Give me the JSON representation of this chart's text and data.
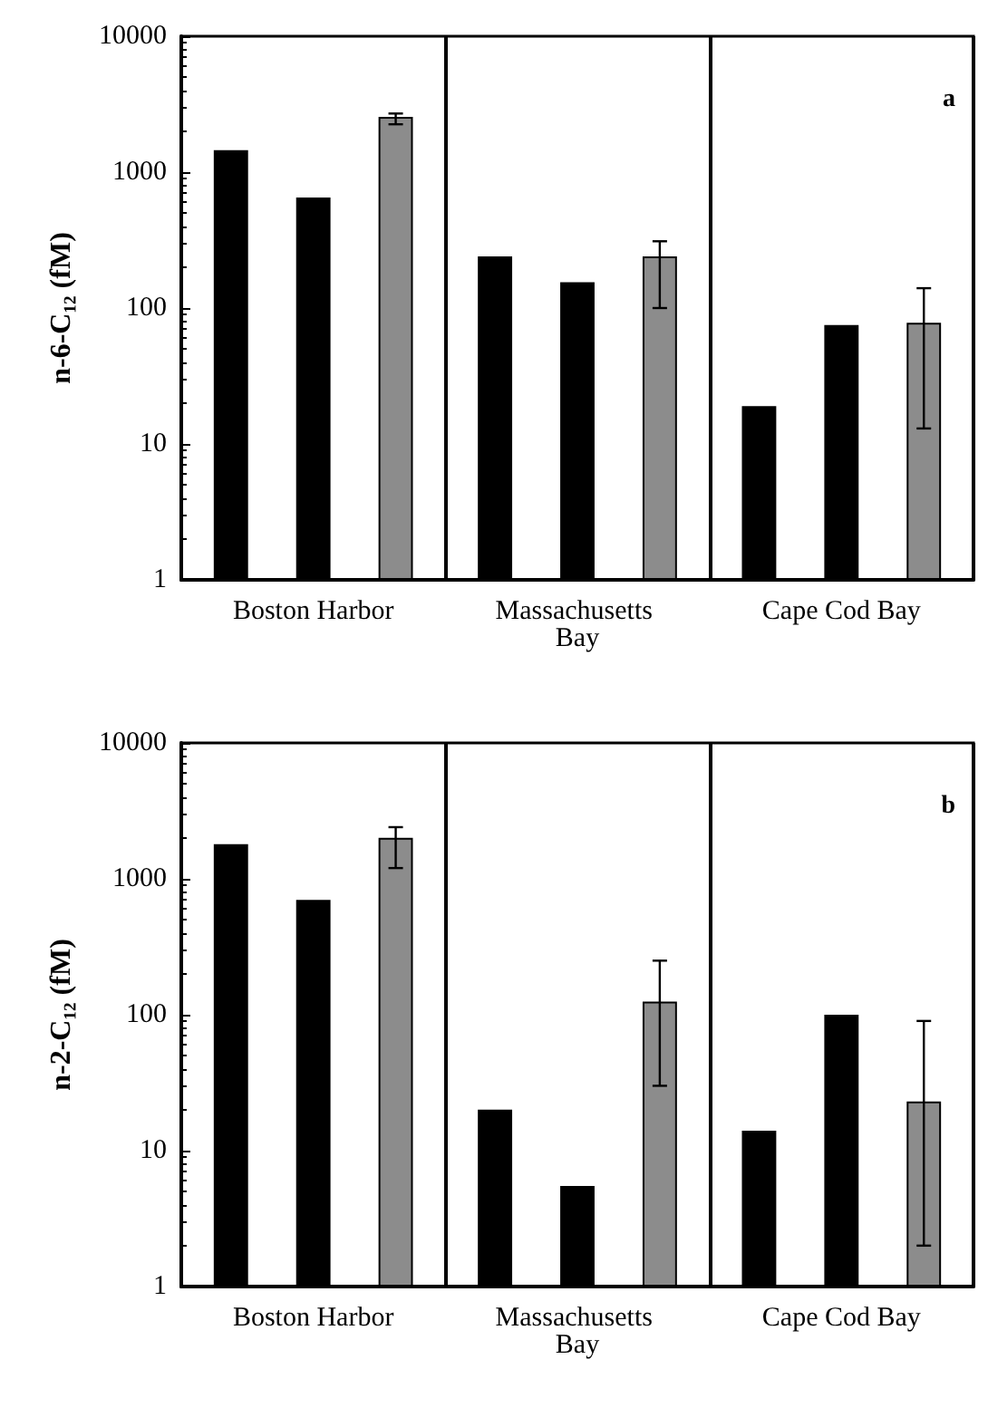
{
  "chart_data": [
    {
      "type": "bar",
      "ylabel": "n-6-C₁₂ (fM)",
      "annotations": [
        "a"
      ],
      "categories": [
        "Boston Harbor",
        "Massachusetts Bay",
        "Cape Cod Bay"
      ],
      "series": [
        {
          "color": "#000000",
          "values": [
            1450,
            240,
            19
          ]
        },
        {
          "color": "#000000",
          "values": [
            650,
            155,
            75
          ]
        },
        {
          "color": "#8c8c8c",
          "values": [
            2550,
            240,
            78
          ],
          "errors": [
            [
              2250,
              2700
            ],
            [
              100,
              310
            ],
            [
              13,
              140
            ]
          ]
        }
      ],
      "ylim": [
        1,
        10000
      ],
      "yticks": [
        1,
        10,
        100,
        1000,
        10000
      ],
      "log": "y",
      "grid": "x"
    },
    {
      "type": "bar",
      "ylabel": "n-2-C₁₂ (fM)",
      "annotations": [
        "b"
      ],
      "categories": [
        "Boston Harbor",
        "Massachusetts Bay",
        "Cape Cod Bay"
      ],
      "series": [
        {
          "color": "#000000",
          "values": [
            1800,
            20,
            14
          ]
        },
        {
          "color": "#000000",
          "values": [
            700,
            5.5,
            100
          ]
        },
        {
          "color": "#8c8c8c",
          "values": [
            2000,
            125,
            23
          ],
          "errors": [
            [
              1200,
              2400
            ],
            [
              30,
              250
            ],
            [
              2,
              90
            ]
          ]
        }
      ],
      "ylim": [
        1,
        10000
      ],
      "yticks": [
        1,
        10,
        100,
        1000,
        10000
      ],
      "log": "y",
      "grid": "x"
    }
  ]
}
